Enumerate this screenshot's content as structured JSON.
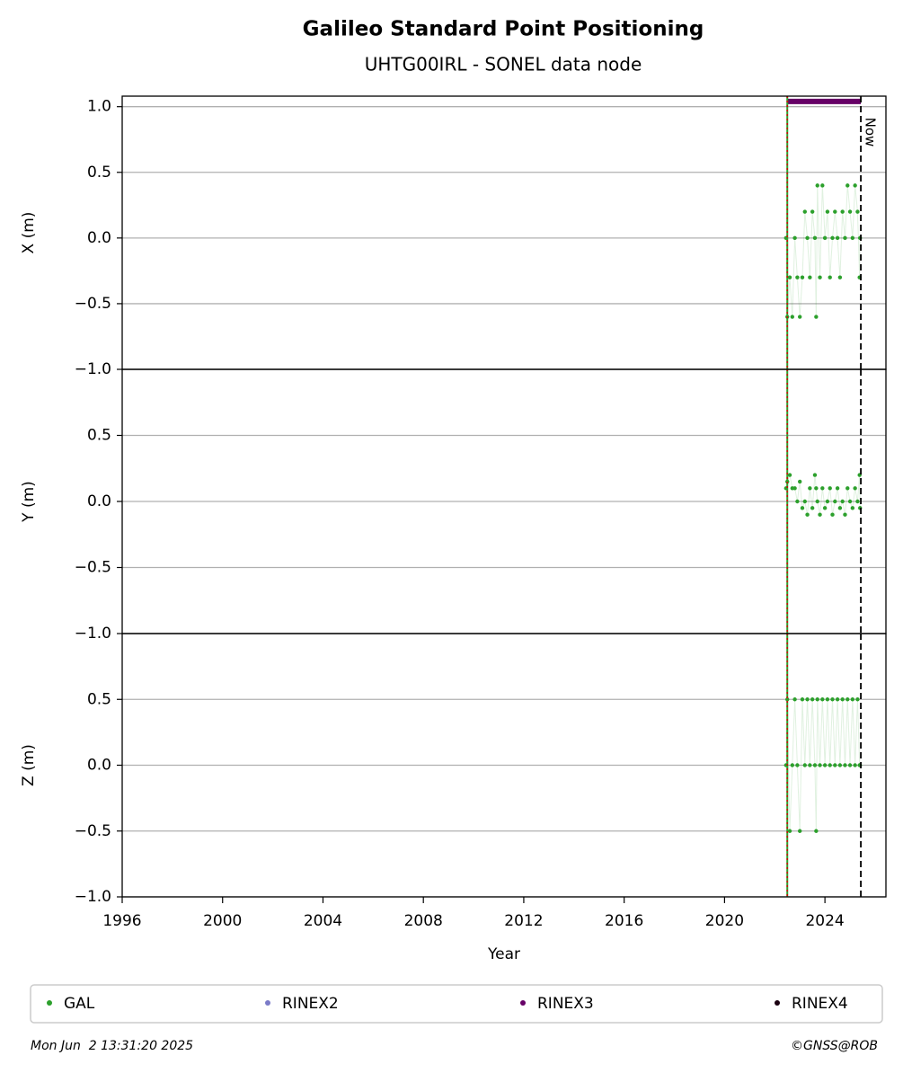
{
  "title": "Galileo Standard Point Positioning",
  "subtitle": "UHTG00IRL - SONEL data node",
  "footer_left": "Mon Jun  2 13:31:20 2025",
  "footer_right": "©GNSS@ROB",
  "legend": [
    {
      "name": "GAL",
      "color": "#2ca02c"
    },
    {
      "name": "RINEX2",
      "color": "#7b7bc8"
    },
    {
      "name": "RINEX3",
      "color": "#660066"
    },
    {
      "name": "RINEX4",
      "color": "#1a0010"
    }
  ],
  "chart_data": [
    {
      "type": "scatter",
      "ylabel": "X (m)",
      "xlim": [
        1996,
        2026.43
      ],
      "ylim": [
        -1,
        1.08
      ],
      "yticks": [
        {
          "value": -1,
          "label": "−1.0"
        },
        {
          "value": -0.5,
          "label": "−0.5"
        },
        {
          "value": 0,
          "label": "0.0"
        },
        {
          "value": 0.5,
          "label": "0.5"
        },
        {
          "value": 1,
          "label": "1.0"
        }
      ],
      "grid": true,
      "start": 2022.5,
      "now": {
        "x": 2025.43,
        "label": "Now"
      },
      "rinex3_coverage": {
        "x": [
          2022.5,
          2025.43
        ],
        "y": 1.04,
        "color": "#660066"
      },
      "series": [
        {
          "name": "GAL",
          "color": "#2ca02c",
          "x": [
            2022.45,
            2022.5,
            2022.6,
            2022.7,
            2022.8,
            2022.9,
            2023.0,
            2023.1,
            2023.2,
            2023.3,
            2023.4,
            2023.5,
            2023.6,
            2023.65,
            2023.7,
            2023.8,
            2023.9,
            2024.0,
            2024.1,
            2024.2,
            2024.3,
            2024.4,
            2024.5,
            2024.6,
            2024.7,
            2024.8,
            2024.9,
            2025.0,
            2025.1,
            2025.2,
            2025.3,
            2025.38,
            2025.4
          ],
          "values": [
            0,
            -0.6,
            -0.3,
            -0.6,
            0,
            -0.3,
            -0.6,
            -0.3,
            0.2,
            0,
            -0.3,
            0.2,
            0,
            -0.6,
            0.4,
            -0.3,
            0.4,
            0,
            0.2,
            -0.3,
            0,
            0.2,
            0,
            -0.3,
            0.2,
            0,
            0.4,
            0.2,
            0,
            0.4,
            0.2,
            -0.3,
            0
          ]
        }
      ]
    },
    {
      "type": "scatter",
      "ylabel": "Y (m)",
      "xlim": [
        1996,
        2026.43
      ],
      "ylim": [
        -1,
        1
      ],
      "yticks": [
        {
          "value": -1,
          "label": "−1.0"
        },
        {
          "value": -0.5,
          "label": "−0.5"
        },
        {
          "value": 0,
          "label": "0.0"
        },
        {
          "value": 0.5,
          "label": "0.5"
        }
      ],
      "grid": true,
      "start": 2022.5,
      "now": {
        "x": 2025.43
      },
      "series": [
        {
          "name": "GAL",
          "color": "#2ca02c",
          "x": [
            2022.45,
            2022.5,
            2022.6,
            2022.7,
            2022.8,
            2022.9,
            2023.0,
            2023.1,
            2023.2,
            2023.3,
            2023.4,
            2023.5,
            2023.6,
            2023.65,
            2023.7,
            2023.8,
            2023.9,
            2024.0,
            2024.1,
            2024.2,
            2024.3,
            2024.4,
            2024.5,
            2024.6,
            2024.7,
            2024.8,
            2024.9,
            2025.0,
            2025.1,
            2025.2,
            2025.3,
            2025.38,
            2025.4
          ],
          "values": [
            0.1,
            0.15,
            0.2,
            0.1,
            0.1,
            0,
            0.15,
            -0.05,
            0,
            -0.1,
            0.1,
            -0.05,
            0.2,
            0.1,
            0,
            -0.1,
            0.1,
            -0.05,
            0,
            0.1,
            -0.1,
            0,
            0.1,
            -0.05,
            0,
            -0.1,
            0.1,
            0,
            -0.05,
            0.1,
            0,
            0.2,
            -0.05
          ]
        }
      ]
    },
    {
      "type": "scatter",
      "ylabel": "Z (m)",
      "xlabel": "Year",
      "xlim": [
        1996,
        2026.43
      ],
      "ylim": [
        -1,
        1
      ],
      "yticks": [
        {
          "value": -1,
          "label": "−1.0"
        },
        {
          "value": -0.5,
          "label": "−0.5"
        },
        {
          "value": 0,
          "label": "0.0"
        },
        {
          "value": 0.5,
          "label": "0.5"
        }
      ],
      "xticks": [
        1996,
        2000,
        2004,
        2008,
        2012,
        2016,
        2020,
        2024
      ],
      "grid": true,
      "start": 2022.5,
      "now": {
        "x": 2025.43
      },
      "series": [
        {
          "name": "GAL",
          "color": "#2ca02c",
          "x": [
            2022.45,
            2022.5,
            2022.6,
            2022.7,
            2022.8,
            2022.9,
            2023.0,
            2023.1,
            2023.2,
            2023.3,
            2023.4,
            2023.5,
            2023.6,
            2023.65,
            2023.7,
            2023.8,
            2023.9,
            2024.0,
            2024.1,
            2024.2,
            2024.3,
            2024.4,
            2024.5,
            2024.6,
            2024.7,
            2024.8,
            2024.9,
            2025.0,
            2025.1,
            2025.2,
            2025.3,
            2025.38,
            2025.4
          ],
          "values": [
            0,
            0.5,
            -0.5,
            0,
            0.5,
            0,
            -0.5,
            0.5,
            0,
            0.5,
            0,
            0.5,
            0,
            -0.5,
            0.5,
            0,
            0.5,
            0,
            0.5,
            0,
            0.5,
            0,
            0.5,
            0,
            0.5,
            0,
            0.5,
            0,
            0.5,
            0,
            0.5,
            0,
            0
          ]
        }
      ]
    }
  ]
}
